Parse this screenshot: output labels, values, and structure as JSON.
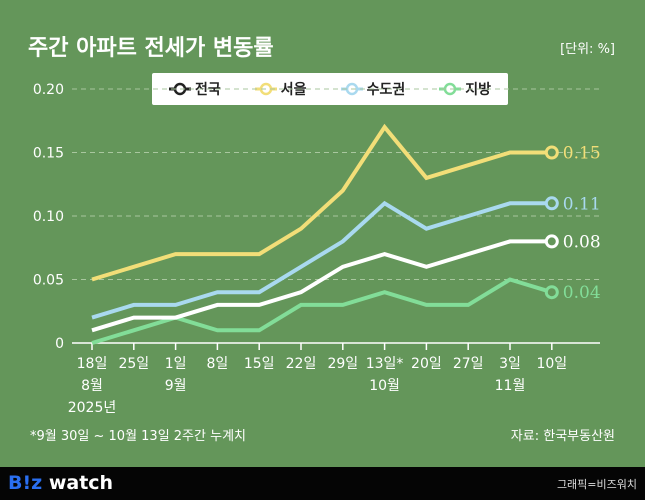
{
  "title": "주간 아파트 전세가 변동률",
  "unit": "[단위: %]",
  "note": "*9월 30일 ~ 10월 13일 2주간 누계치",
  "source": "자료: 한국부동산원",
  "footer": {
    "logo_b": "B!z",
    "logo_rest": " watch",
    "credit": "그래픽=비즈워치"
  },
  "chart_data": {
    "type": "line",
    "categories": [
      "18일",
      "25일",
      "1일",
      "8일",
      "15일",
      "22일",
      "29일",
      "13일*",
      "20일",
      "27일",
      "3일",
      "10일"
    ],
    "month_labels": [
      {
        "index": 0,
        "label": "8월"
      },
      {
        "index": 2,
        "label": "9월"
      },
      {
        "index": 7,
        "label": "10월"
      },
      {
        "index": 10,
        "label": "11월"
      }
    ],
    "year_label": {
      "index": 0,
      "label": "2025년"
    },
    "ylim": [
      0,
      0.2
    ],
    "yticks": [
      "0",
      "0.05",
      "0.10",
      "0.15",
      "0.20"
    ],
    "grid": true,
    "legend": "top",
    "series": [
      {
        "name": "전국",
        "color": "#ffffff",
        "values": [
          0.01,
          0.02,
          0.02,
          0.03,
          0.03,
          0.04,
          0.06,
          0.07,
          0.06,
          0.07,
          0.08,
          0.08
        ],
        "end_label": "0.08"
      },
      {
        "name": "서울",
        "color": "#f2de78",
        "values": [
          0.05,
          0.06,
          0.07,
          0.07,
          0.07,
          0.09,
          0.12,
          0.17,
          0.13,
          0.14,
          0.15,
          0.15
        ],
        "end_label": "0.15"
      },
      {
        "name": "수도권",
        "color": "#a9d9ef",
        "values": [
          0.02,
          0.03,
          0.03,
          0.04,
          0.04,
          0.06,
          0.08,
          0.11,
          0.09,
          0.1,
          0.11,
          0.11
        ],
        "end_label": "0.11"
      },
      {
        "name": "지방",
        "color": "#82dd98",
        "values": [
          0,
          0.01,
          0.02,
          0.01,
          0.01,
          0.03,
          0.03,
          0.04,
          0.03,
          0.03,
          0.05,
          0.04
        ],
        "end_label": "0.04"
      }
    ]
  }
}
